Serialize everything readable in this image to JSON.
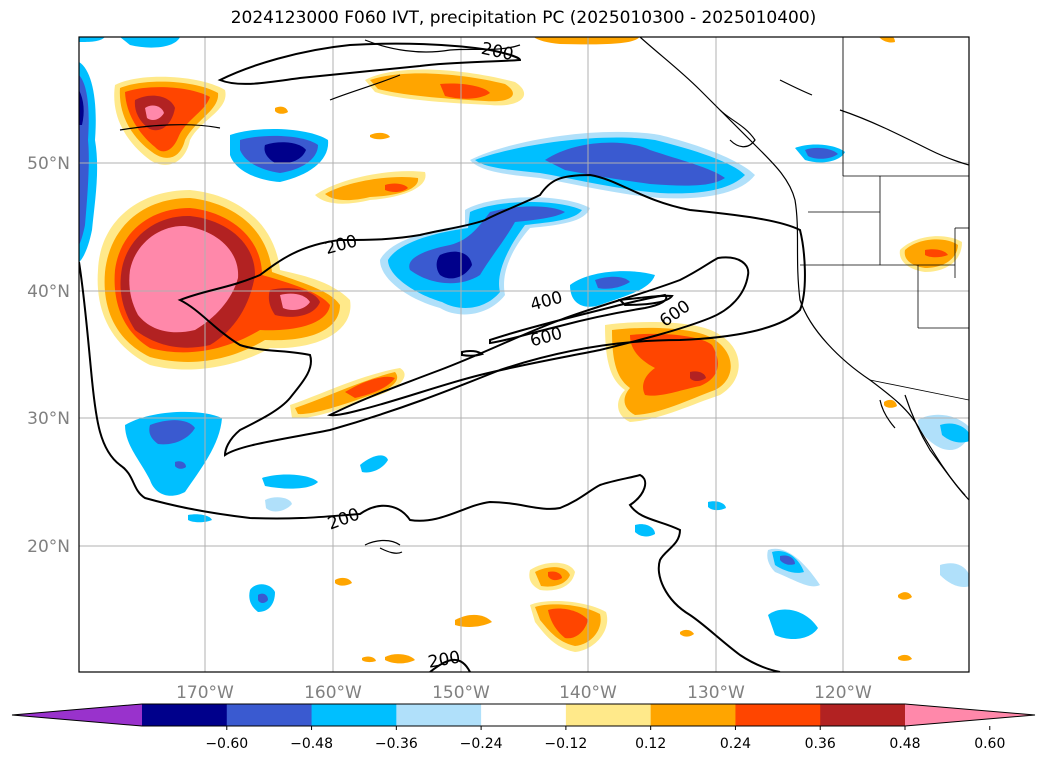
{
  "title": "2024123000 F060 IVT, precipitation PC (2025010300 - 2025010400)",
  "map": {
    "lon_labels": [
      "170°W",
      "160°W",
      "150°W",
      "140°W",
      "130°W",
      "120°W"
    ],
    "lat_labels": [
      "50°N",
      "40°N",
      "30°N",
      "20°N"
    ],
    "contour_labels": [
      "200",
      "200",
      "400",
      "600",
      "600",
      "200",
      "200"
    ]
  },
  "colorbar": {
    "colors": [
      "#9932cc",
      "#00008b",
      "#3a5ad0",
      "#00bfff",
      "#b0e0fa",
      "#ffffff",
      "#ffe98a",
      "#ffa500",
      "#ff4500",
      "#b22222",
      "#ff88aa"
    ],
    "tick_labels": [
      "−0.60",
      "−0.48",
      "−0.36",
      "−0.24",
      "−0.12",
      "0.12",
      "0.24",
      "0.36",
      "0.48",
      "0.60"
    ]
  }
}
